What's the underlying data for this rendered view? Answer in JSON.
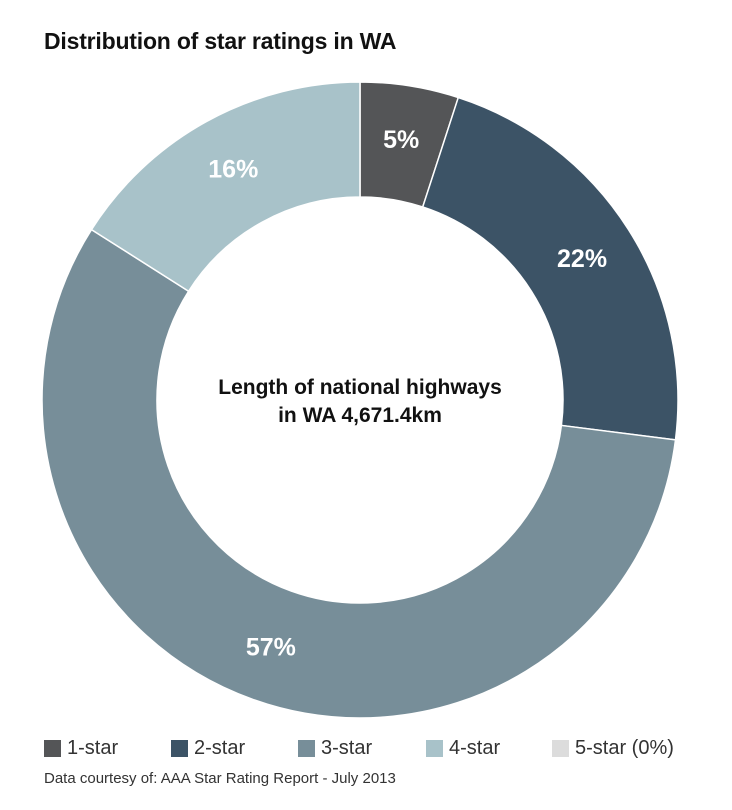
{
  "chart_data": {
    "type": "pie",
    "title": "Distribution of star ratings in WA",
    "center_label_lines": [
      "Length of national highways",
      "in WA 4,671.4km"
    ],
    "categories": [
      "1-star",
      "2-star",
      "3-star",
      "4-star",
      "5-star (0%)"
    ],
    "values": [
      5,
      22,
      57,
      16,
      0
    ],
    "data_labels": [
      "5%",
      "22%",
      "57%",
      "16%",
      ""
    ],
    "colors": [
      "#545557",
      "#3c5366",
      "#778e99",
      "#a8c2c9",
      "#dcdcdc"
    ],
    "donut": true,
    "legend_position": "bottom",
    "source": "Data courtesy of: AAA Star Rating Report - July 2013"
  }
}
